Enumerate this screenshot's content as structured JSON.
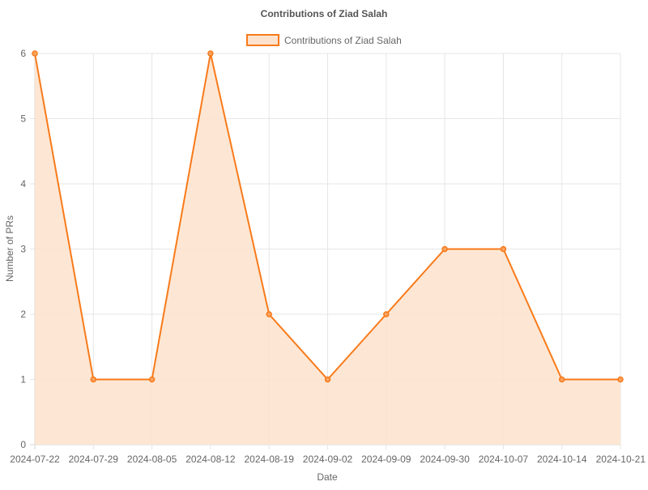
{
  "chart_data": {
    "type": "area",
    "title": "Contributions of Ziad Salah",
    "xlabel": "Date",
    "ylabel": "Number of PRs",
    "categories": [
      "2024-07-22",
      "2024-07-29",
      "2024-08-05",
      "2024-08-12",
      "2024-08-19",
      "2024-09-02",
      "2024-09-09",
      "2024-09-30",
      "2024-10-07",
      "2024-10-14",
      "2024-10-21"
    ],
    "series": [
      {
        "name": "Contributions of Ziad Salah",
        "values": [
          6,
          1,
          1,
          6,
          2,
          1,
          2,
          3,
          3,
          1,
          1
        ]
      }
    ],
    "ylim": [
      0,
      6
    ],
    "yticks": [
      "0",
      "1",
      "2",
      "3",
      "4",
      "5",
      "6"
    ],
    "grid": true,
    "legend_position": "top",
    "colors": {
      "line": "#f97a1a",
      "fill": "#fde3cd",
      "point_fill": "#f9a25e"
    }
  }
}
